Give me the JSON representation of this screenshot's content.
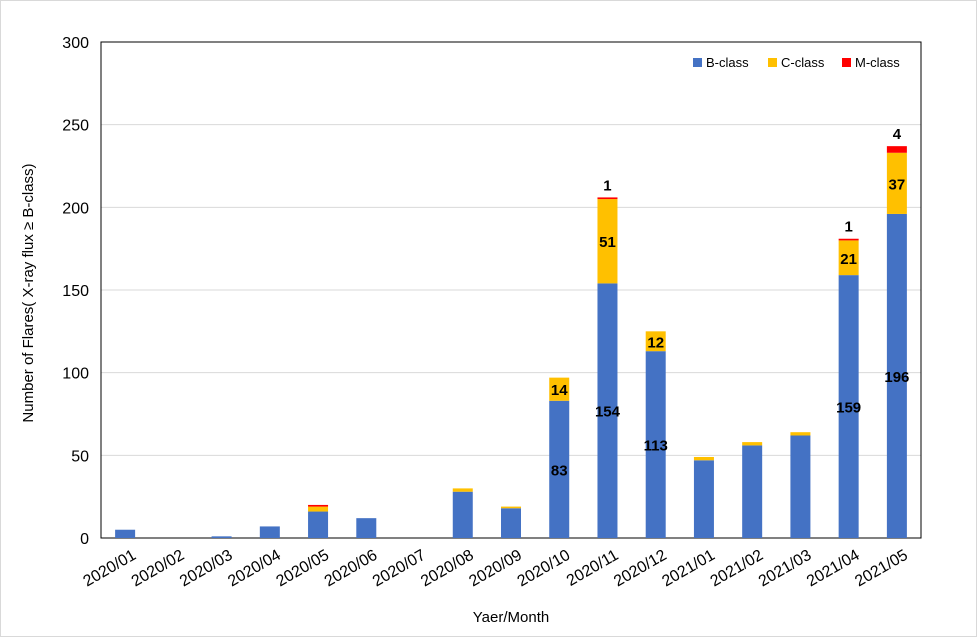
{
  "chart_data": {
    "type": "bar",
    "stacked": true,
    "xlabel": "Yaer/Month",
    "ylabel": "Number of Flares( X-ray flux ≥ B-class)",
    "ylim": [
      0,
      300
    ],
    "yticks": [
      0,
      50,
      100,
      150,
      200,
      250,
      300
    ],
    "grid": true,
    "legend_position": "top-right",
    "categories": [
      "2020/01",
      "2020/02",
      "2020/03",
      "2020/04",
      "2020/05",
      "2020/06",
      "2020/07",
      "2020/08",
      "2020/09",
      "2020/10",
      "2020/11",
      "2020/12",
      "2021/01",
      "2021/02",
      "2021/03",
      "2021/04",
      "2021/05"
    ],
    "series": [
      {
        "name": "B-class",
        "color": "#4472C4",
        "values": [
          5,
          0,
          1,
          7,
          16,
          12,
          0,
          28,
          18,
          83,
          154,
          113,
          47,
          56,
          62,
          159,
          196
        ]
      },
      {
        "name": "C-class",
        "color": "#FFC000",
        "values": [
          0,
          0,
          0,
          0,
          3,
          0,
          0,
          2,
          1,
          14,
          51,
          12,
          2,
          2,
          2,
          21,
          37
        ]
      },
      {
        "name": "M-class",
        "color": "#FF0000",
        "values": [
          0,
          0,
          0,
          0,
          1,
          0,
          0,
          0,
          0,
          0,
          1,
          0,
          0,
          0,
          0,
          1,
          4
        ]
      }
    ],
    "data_labels": [
      {
        "series": 0,
        "index": 9,
        "text": "83"
      },
      {
        "series": 1,
        "index": 9,
        "text": "14"
      },
      {
        "series": 0,
        "index": 10,
        "text": "154"
      },
      {
        "series": 1,
        "index": 10,
        "text": "51"
      },
      {
        "series": 2,
        "index": 10,
        "text": "1"
      },
      {
        "series": 0,
        "index": 11,
        "text": "113"
      },
      {
        "series": 1,
        "index": 11,
        "text": "12"
      },
      {
        "series": 0,
        "index": 15,
        "text": "159"
      },
      {
        "series": 1,
        "index": 15,
        "text": "21"
      },
      {
        "series": 2,
        "index": 15,
        "text": "1"
      },
      {
        "series": 0,
        "index": 16,
        "text": "196"
      },
      {
        "series": 1,
        "index": 16,
        "text": "37"
      },
      {
        "series": 2,
        "index": 16,
        "text": "4"
      }
    ]
  }
}
